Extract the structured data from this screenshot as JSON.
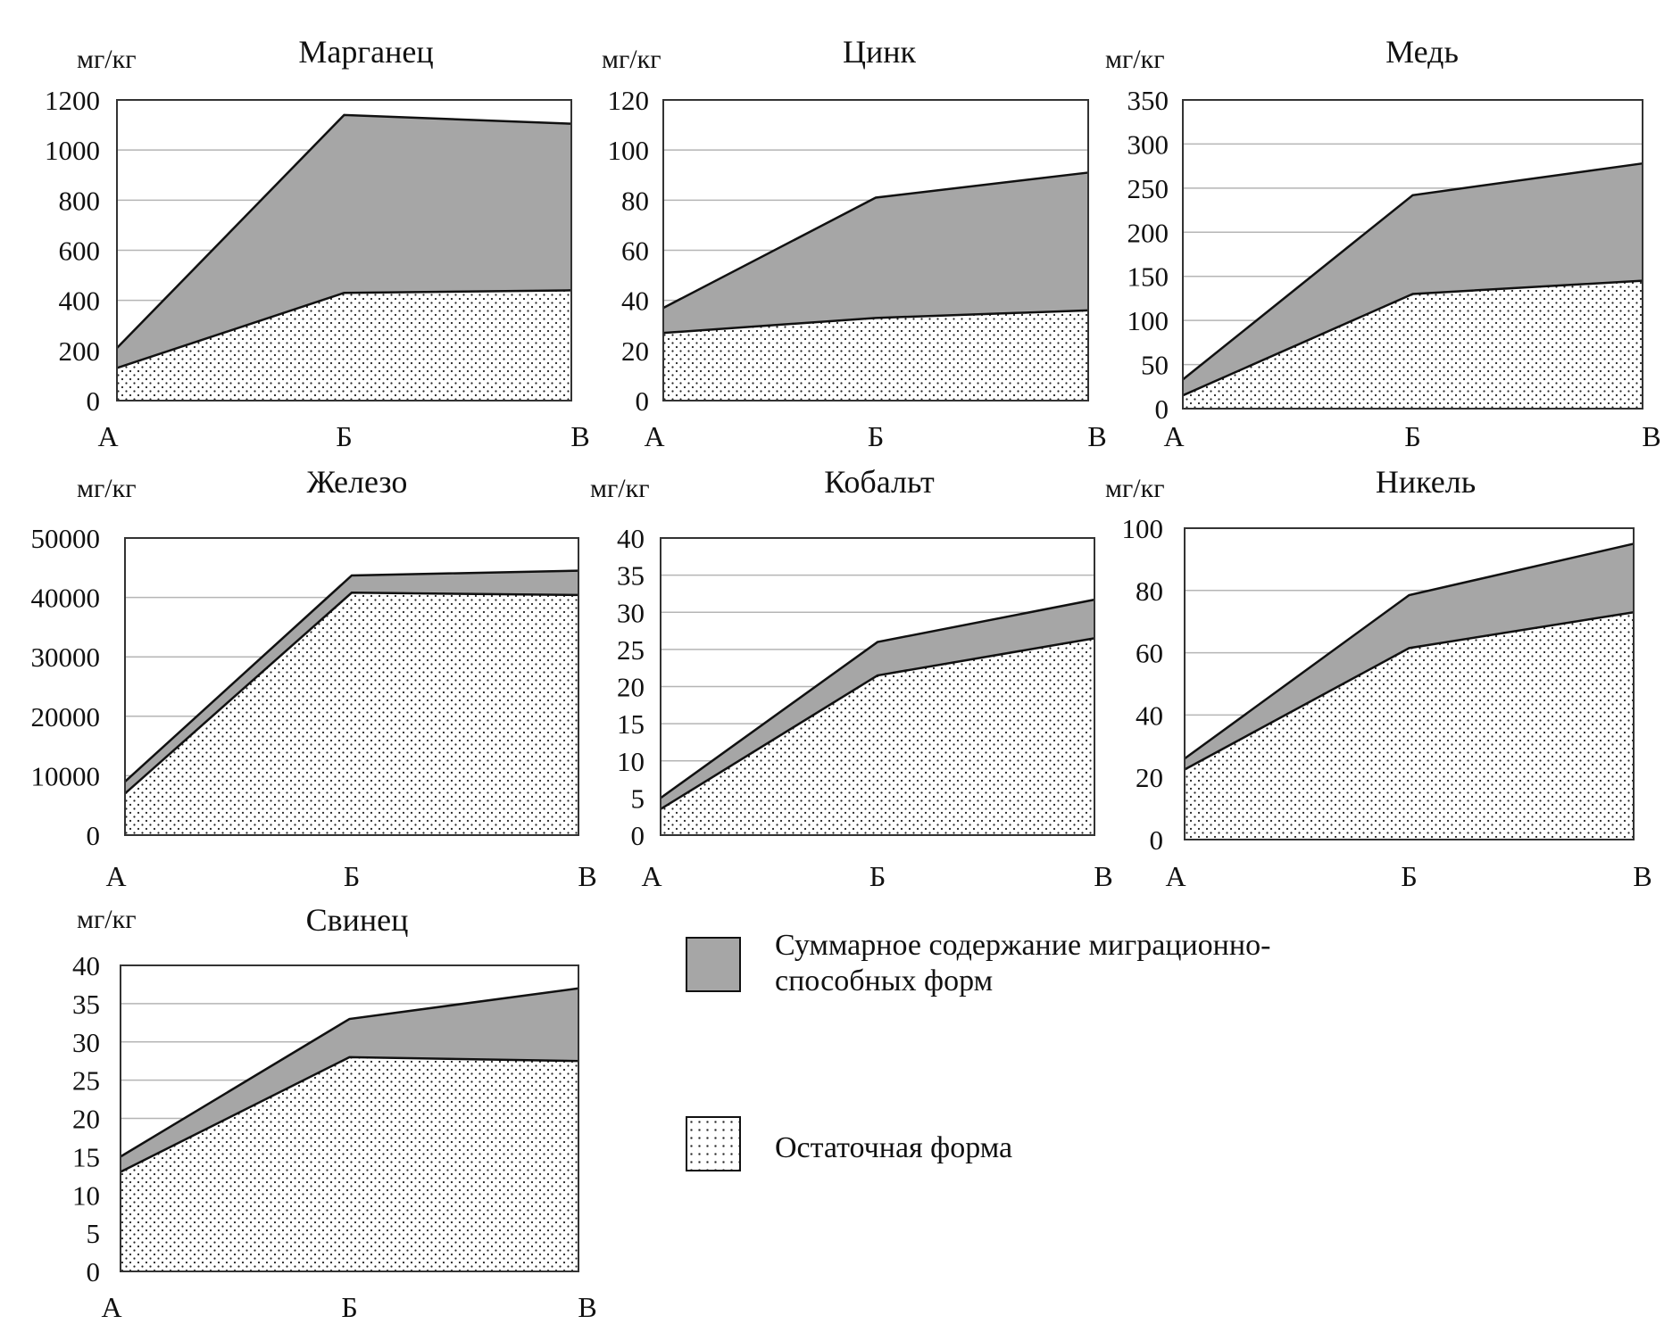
{
  "legend": {
    "migratory_label_line1": "Суммарное содержание миграционно-",
    "migratory_label_line2": "способных форм",
    "residual_label": "Остаточная форма",
    "migratory_color": "#a6a6a6",
    "residual_color": "#ffffff"
  },
  "chart_data": [
    {
      "type": "area",
      "title": "Марганец",
      "ylabel": "мг/кг",
      "categories": [
        "А",
        "Б",
        "В"
      ],
      "ylim": [
        0,
        1200
      ],
      "yticks": [
        0,
        200,
        400,
        600,
        800,
        1000,
        1200
      ],
      "stacked": true,
      "series": [
        {
          "name": "Остаточная форма",
          "values": [
            130,
            430,
            440
          ]
        },
        {
          "name": "Суммарное содержание миграционно-способных форм",
          "values": [
            80,
            710,
            665
          ]
        }
      ],
      "grid": true
    },
    {
      "type": "area",
      "title": "Цинк",
      "ylabel": "мг/кг",
      "categories": [
        "А",
        "Б",
        "В"
      ],
      "ylim": [
        0,
        120
      ],
      "yticks": [
        0,
        20,
        40,
        60,
        80,
        100,
        120
      ],
      "stacked": true,
      "series": [
        {
          "name": "Остаточная форма",
          "values": [
            27,
            33,
            36
          ]
        },
        {
          "name": "Суммарное содержание миграционно-способных форм",
          "values": [
            10,
            48,
            55
          ]
        }
      ],
      "grid": true
    },
    {
      "type": "area",
      "title": "Медь",
      "ylabel": "мг/кг",
      "categories": [
        "А",
        "Б",
        "В"
      ],
      "ylim": [
        0,
        350
      ],
      "yticks": [
        0,
        50,
        100,
        150,
        200,
        250,
        300,
        350
      ],
      "stacked": true,
      "series": [
        {
          "name": "Остаточная форма",
          "values": [
            15,
            130,
            145
          ]
        },
        {
          "name": "Суммарное содержание миграционно-способных форм",
          "values": [
            18,
            112,
            133
          ]
        }
      ],
      "grid": true
    },
    {
      "type": "area",
      "title": "Железо",
      "ylabel": "мг/кг",
      "categories": [
        "А",
        "Б",
        "В"
      ],
      "ylim": [
        0,
        50000
      ],
      "yticks": [
        0,
        10000,
        20000,
        30000,
        40000,
        50000
      ],
      "stacked": true,
      "series": [
        {
          "name": "Остаточная форма",
          "values": [
            7000,
            40800,
            40400
          ]
        },
        {
          "name": "Суммарное содержание миграционно-способных форм",
          "values": [
            2000,
            2900,
            4100
          ]
        }
      ],
      "grid": true
    },
    {
      "type": "area",
      "title": "Кобальт",
      "ylabel": "мг/кг",
      "categories": [
        "А",
        "Б",
        "В"
      ],
      "ylim": [
        0,
        40
      ],
      "yticks": [
        0,
        5,
        10,
        15,
        20,
        25,
        30,
        35,
        40
      ],
      "stacked": true,
      "series": [
        {
          "name": "Остаточная форма",
          "values": [
            3.5,
            21.5,
            26.5
          ]
        },
        {
          "name": "Суммарное содержание миграционно-способных форм",
          "values": [
            1.5,
            4.5,
            5.2
          ]
        }
      ],
      "grid": true
    },
    {
      "type": "area",
      "title": "Никель",
      "ylabel": "мг/кг",
      "categories": [
        "А",
        "Б",
        "В"
      ],
      "ylim": [
        0,
        100
      ],
      "yticks": [
        0,
        20,
        40,
        60,
        80,
        100
      ],
      "stacked": true,
      "series": [
        {
          "name": "Остаточная форма",
          "values": [
            22.5,
            61.5,
            73
          ]
        },
        {
          "name": "Суммарное содержание миграционно-способных форм",
          "values": [
            3.5,
            17,
            22
          ]
        }
      ],
      "grid": true
    },
    {
      "type": "area",
      "title": "Свинец",
      "ylabel": "мг/кг",
      "categories": [
        "А",
        "Б",
        "В"
      ],
      "ylim": [
        0,
        40
      ],
      "yticks": [
        0,
        5,
        10,
        15,
        20,
        25,
        30,
        35,
        40
      ],
      "stacked": true,
      "series": [
        {
          "name": "Остаточная форма",
          "values": [
            13,
            28,
            27.5
          ]
        },
        {
          "name": "Суммарное содержание миграционно-способных форм",
          "values": [
            2,
            5,
            9.5
          ]
        }
      ],
      "grid": true
    }
  ]
}
